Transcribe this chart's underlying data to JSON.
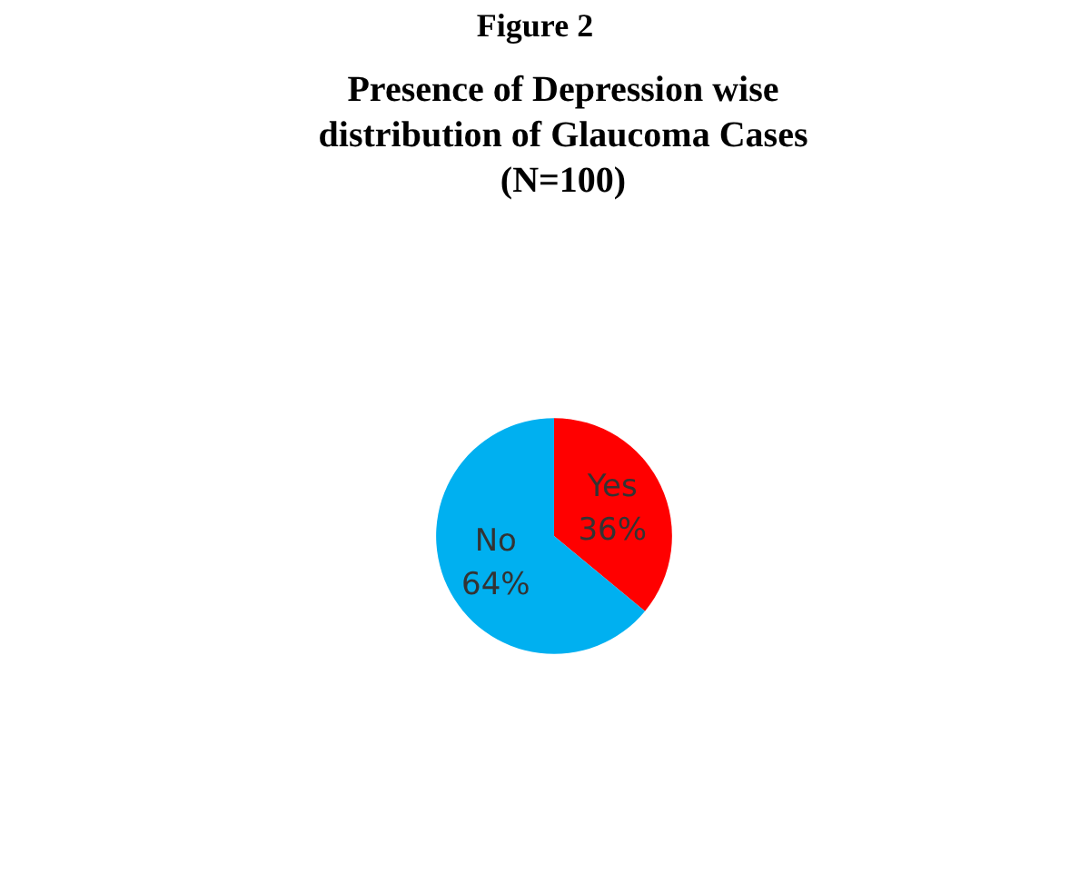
{
  "chart_data": {
    "type": "pie",
    "title": "Presence of Depression wise\ndistribution of Glaucoma Cases\n(N=100)",
    "annotations": [
      "Figure 2"
    ],
    "categories": [
      "Yes",
      "No"
    ],
    "values": [
      36,
      64
    ],
    "value_labels": [
      "36%",
      "64%"
    ],
    "colors": [
      "#ff0000",
      "#00b0f0"
    ],
    "legend": false
  }
}
